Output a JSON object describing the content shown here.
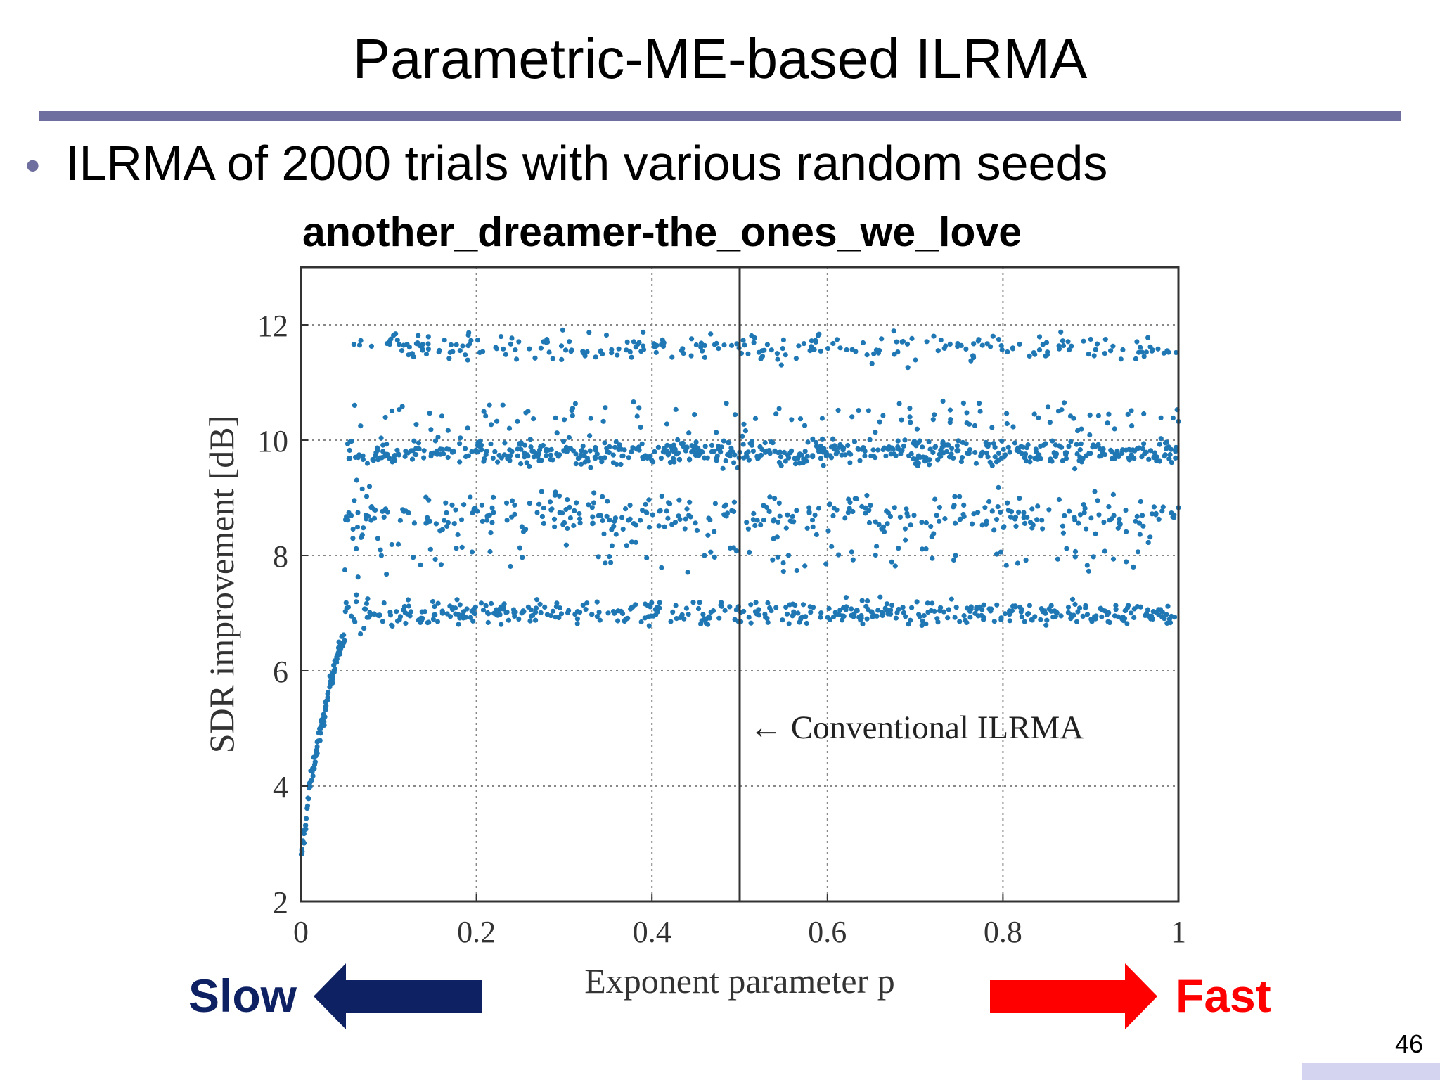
{
  "slide": {
    "title": "Parametric-ME-based ILRMA",
    "bullet": "ILRMA of 2000 trials with various random seeds",
    "page_number": "46",
    "slow_label": "Slow",
    "fast_label": "Fast",
    "colors": {
      "title_rule": "#6e6f9e",
      "slow": "#0d2163",
      "fast": "#ff0000",
      "points": "#1f77b4"
    }
  },
  "chart_data": {
    "type": "scatter",
    "title": "another_dreamer-the_ones_we_love",
    "xlabel": "Exponent parameter p",
    "ylabel": "SDR improvement [dB]",
    "xlim": [
      0,
      1
    ],
    "ylim": [
      2,
      13
    ],
    "x_ticks": [
      "0",
      "0.2",
      "0.4",
      "0.6",
      "0.8",
      "1"
    ],
    "y_ticks": [
      "2",
      "4",
      "6",
      "8",
      "10",
      "12"
    ],
    "grid": true,
    "reference_line": {
      "x": 0.5,
      "label": "← Conventional ILRMA"
    },
    "n_points": 2000,
    "clusters": [
      {
        "name": "~11.6 dB",
        "center": 11.6
      },
      {
        "name": "~9.8 dB",
        "center": 9.8
      },
      {
        "name": "~8.7 dB",
        "center": 8.7
      },
      {
        "name": "~7.0 dB",
        "center": 7.0
      }
    ],
    "low_p_trend": [
      [
        0.0,
        2.7
      ],
      [
        0.005,
        3.3
      ],
      [
        0.01,
        4.0
      ],
      [
        0.015,
        4.4
      ],
      [
        0.02,
        4.8
      ],
      [
        0.025,
        5.1
      ],
      [
        0.03,
        5.5
      ],
      [
        0.035,
        5.9
      ],
      [
        0.04,
        6.2
      ],
      [
        0.05,
        6.6
      ]
    ]
  }
}
